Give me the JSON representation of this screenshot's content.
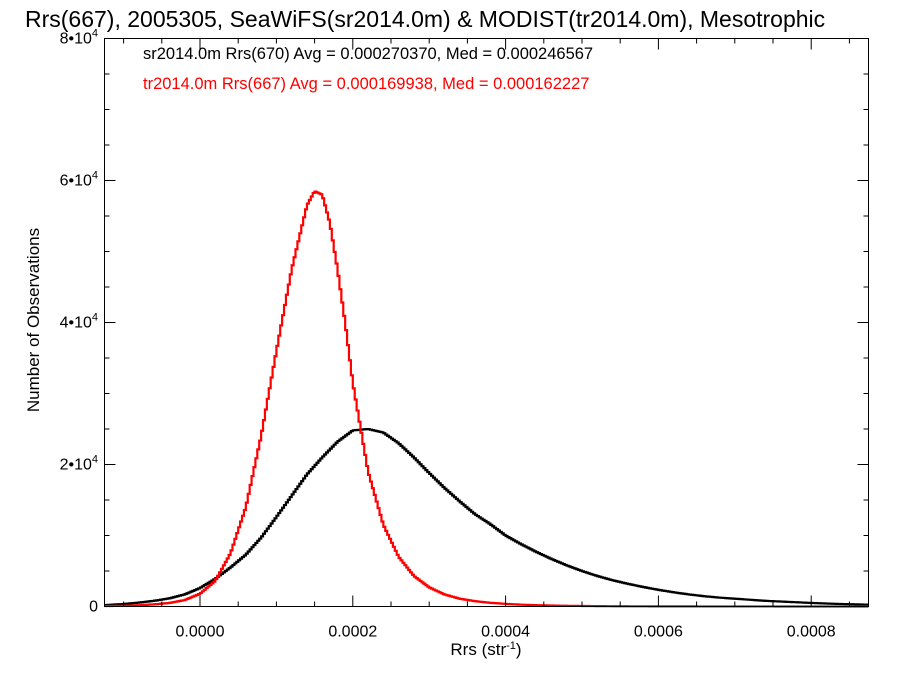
{
  "chart_data": {
    "type": "line",
    "title": "Rrs(667), 2005305, SeaWiFS(sr2014.0m) & MODIST(tr2014.0m), Mesotrophic",
    "xlabel": "Rrs (str",
    "xlabel_sup": "-1",
    "xlabel_end": ")",
    "ylabel": "Number of Observations",
    "xlim": [
      -0.000125,
      0.000875
    ],
    "ylim": [
      0,
      80000
    ],
    "grid": false,
    "legend_position": "top-left",
    "x_ticks": [
      {
        "value": 0.0,
        "label": "0.0000"
      },
      {
        "value": 0.0002,
        "label": "0.0002"
      },
      {
        "value": 0.0004,
        "label": "0.0004"
      },
      {
        "value": 0.0006,
        "label": "0.0006"
      },
      {
        "value": 0.0008,
        "label": "0.0008"
      }
    ],
    "y_ticks": [
      {
        "value": 0,
        "base": "0",
        "exp": ""
      },
      {
        "value": 20000,
        "base": "2•10",
        "exp": "4"
      },
      {
        "value": 40000,
        "base": "4•10",
        "exp": "4"
      },
      {
        "value": 60000,
        "base": "6•10",
        "exp": "4"
      },
      {
        "value": 80000,
        "base": "8•10",
        "exp": "4"
      }
    ],
    "series": [
      {
        "name": "sr2014.0m Rrs(670) Avg = 0.000270370, Med = 0.000246567",
        "color": "#000000",
        "x": [
          -0.000125,
          -0.0001,
          -8e-05,
          -6e-05,
          -4e-05,
          -2e-05,
          0.0,
          2e-05,
          4e-05,
          6e-05,
          8e-05,
          0.0001,
          0.00012,
          0.00014,
          0.00016,
          0.00018,
          0.0002,
          0.00022,
          0.00024,
          0.00026,
          0.00028,
          0.0003,
          0.00032,
          0.00034,
          0.00036,
          0.00038,
          0.0004,
          0.00042,
          0.00044,
          0.00046,
          0.00048,
          0.0005,
          0.00052,
          0.00054,
          0.00056,
          0.00058,
          0.0006,
          0.00062,
          0.00064,
          0.00066,
          0.00068,
          0.0007,
          0.00072,
          0.00074,
          0.00076,
          0.00078,
          0.0008,
          0.00082,
          0.00084,
          0.00086,
          0.000875
        ],
        "y": [
          200,
          350,
          550,
          800,
          1150,
          1700,
          2600,
          3900,
          5500,
          7300,
          9700,
          12600,
          15600,
          18600,
          21000,
          23200,
          24800,
          25000,
          24500,
          23000,
          21000,
          18800,
          16700,
          14800,
          13000,
          11600,
          10000,
          8800,
          7700,
          6700,
          5800,
          5000,
          4300,
          3700,
          3200,
          2750,
          2350,
          2000,
          1700,
          1450,
          1250,
          1100,
          950,
          800,
          700,
          600,
          500,
          420,
          350,
          300,
          260
        ]
      },
      {
        "name": "tr2014.0m Rrs(667) Avg = 0.000169938, Med = 0.000162227",
        "color": "#ff0000",
        "x": [
          -0.000125,
          -0.0001,
          -8e-05,
          -6e-05,
          -4e-05,
          -2e-05,
          0.0,
          2e-05,
          4e-05,
          6e-05,
          8e-05,
          0.0001,
          0.00012,
          0.00014,
          0.00015,
          0.00016,
          0.00017,
          0.00018,
          0.00019,
          0.0002,
          0.00022,
          0.00024,
          0.00026,
          0.00028,
          0.0003,
          0.00032,
          0.00034,
          0.00036,
          0.00038,
          0.0004,
          0.00042,
          0.00044,
          0.00046,
          0.00048,
          0.0005,
          0.00052,
          0.00054,
          0.00056,
          0.0006,
          0.00065,
          0.0007,
          0.00075,
          0.0008,
          0.00085,
          0.000875
        ],
        "y": [
          60,
          100,
          180,
          300,
          500,
          900,
          1800,
          3600,
          7500,
          14000,
          24000,
          36000,
          47500,
          56500,
          58500,
          58000,
          54000,
          47500,
          40000,
          31500,
          19000,
          11500,
          7000,
          4300,
          2700,
          1700,
          1100,
          750,
          520,
          370,
          260,
          190,
          140,
          100,
          75,
          55,
          40,
          30,
          20,
          12,
          8,
          5,
          4,
          3,
          2
        ]
      }
    ]
  }
}
